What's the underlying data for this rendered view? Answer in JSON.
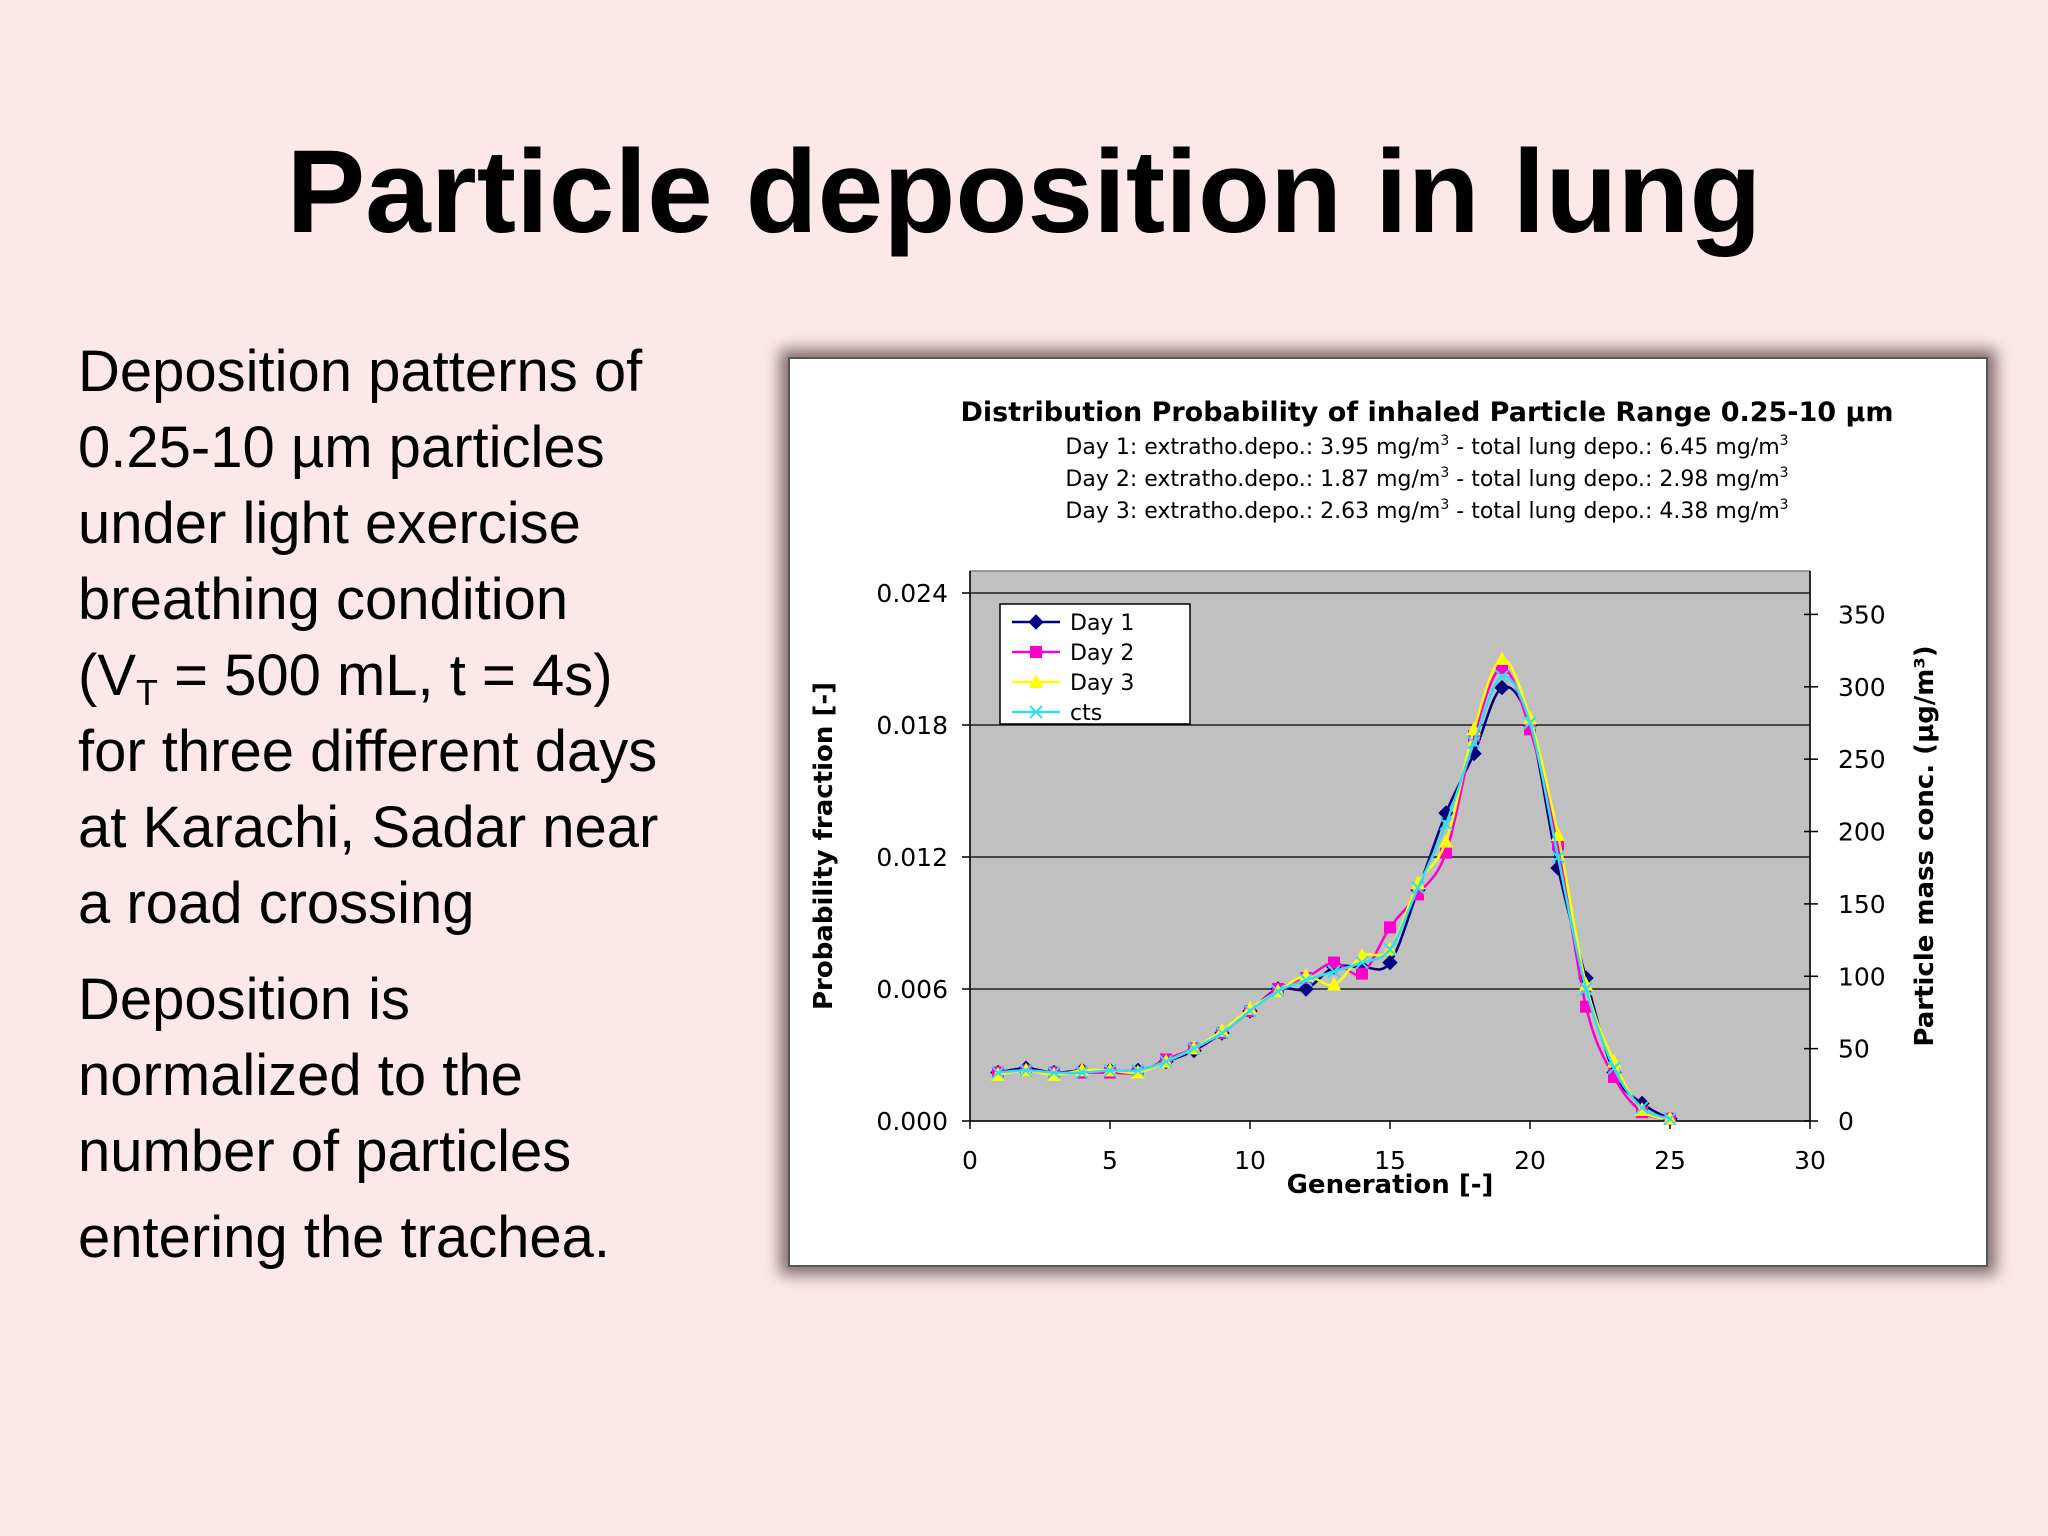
{
  "slide": {
    "title": "Particle deposition in lung",
    "para1": {
      "lines": [
        "Deposition patterns of",
        "0.25-10 µm particles",
        "under light exercise",
        "breathing condition"
      ],
      "vt_open": "(V",
      "vt_sub": "T",
      "vt_close": " = 500 mL, t = 4s)",
      "more_lines": [
        "for three different days",
        "at Karachi, Sadar near",
        "a road crossing"
      ]
    },
    "para2": {
      "lines": [
        "Deposition is",
        "normalized to the",
        "number of particles",
        "entering the trachea."
      ]
    }
  },
  "chart_data": {
    "type": "line",
    "title": "Distribution Probability of inhaled Particle Range 0.25-10 µm",
    "subtitles": [
      {
        "pre": "Day 1: extratho.depo.: 3.95 mg/m",
        "sup1": "3",
        "mid": " - total lung depo.: 6.45 mg/m",
        "sup2": "3"
      },
      {
        "pre": "Day 2: extratho.depo.: 1.87 mg/m",
        "sup1": "3",
        "mid": " - total lung depo.: 2.98 mg/m",
        "sup2": "3"
      },
      {
        "pre": "Day 3: extratho.depo.: 2.63 mg/m",
        "sup1": "3",
        "mid": " - total lung depo.: 4.38 mg/m",
        "sup2": "3"
      }
    ],
    "xlabel": "Generation [-]",
    "ylabel": "Probability fraction [-]",
    "y2label": "Particle mass conc. (µg/m³)",
    "xlim": [
      0,
      30
    ],
    "ylim": [
      0,
      0.025
    ],
    "y2lim": [
      0,
      380
    ],
    "xticks": [
      "0",
      "5",
      "10",
      "15",
      "20",
      "25",
      "30"
    ],
    "yticks": [
      "0.000",
      "0.006",
      "0.012",
      "0.018",
      "0.024"
    ],
    "y2ticks": [
      "0",
      "50",
      "100",
      "150",
      "200",
      "250",
      "300",
      "350"
    ],
    "grid": "horizontal",
    "legend_position": "top-left",
    "x": [
      1,
      2,
      3,
      4,
      5,
      6,
      7,
      8,
      9,
      10,
      11,
      12,
      13,
      14,
      15,
      16,
      17,
      18,
      19,
      20,
      21,
      22,
      23,
      24,
      25
    ],
    "series": [
      {
        "name": "Day 1",
        "color": "#000080",
        "marker": "diamond",
        "values": [
          0.0022,
          0.0024,
          0.0022,
          0.0023,
          0.0023,
          0.0023,
          0.0027,
          0.0032,
          0.004,
          0.005,
          0.006,
          0.006,
          0.007,
          0.007,
          0.0072,
          0.0105,
          0.014,
          0.0167,
          0.0197,
          0.018,
          0.0115,
          0.0065,
          0.0022,
          0.0008,
          0.0001
        ]
      },
      {
        "name": "Day 2",
        "color": "#ff00cc",
        "marker": "square",
        "values": [
          0.0022,
          0.0023,
          0.0022,
          0.0022,
          0.0022,
          0.0022,
          0.0028,
          0.0033,
          0.004,
          0.005,
          0.006,
          0.0065,
          0.0072,
          0.0067,
          0.0088,
          0.0103,
          0.0122,
          0.0175,
          0.0206,
          0.0178,
          0.0125,
          0.0052,
          0.002,
          0.0004,
          0.0001
        ]
      },
      {
        "name": "Day 3",
        "color": "#ffff00",
        "marker": "triangle",
        "values": [
          0.0021,
          0.0023,
          0.0021,
          0.0023,
          0.0023,
          0.0022,
          0.0027,
          0.0033,
          0.0041,
          0.0051,
          0.0059,
          0.0066,
          0.0062,
          0.0075,
          0.0078,
          0.0108,
          0.0127,
          0.0178,
          0.021,
          0.0183,
          0.013,
          0.0062,
          0.0027,
          0.0005,
          0.0001
        ]
      },
      {
        "name": "cts",
        "color": "#33ddee",
        "marker": "x",
        "values": [
          0.0022,
          0.0023,
          0.0022,
          0.0022,
          0.0023,
          0.0023,
          0.0027,
          0.0033,
          0.004,
          0.005,
          0.0059,
          0.0064,
          0.0068,
          0.0072,
          0.0078,
          0.0106,
          0.0135,
          0.0172,
          0.0202,
          0.0181,
          0.012,
          0.006,
          0.0024,
          0.0006,
          0.0001
        ]
      }
    ]
  }
}
